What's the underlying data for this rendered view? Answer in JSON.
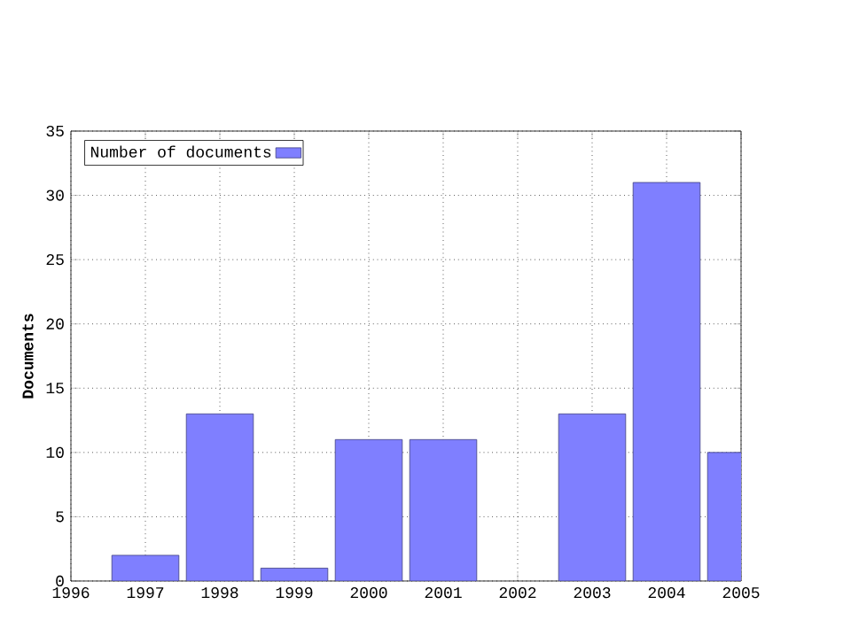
{
  "chart_data": {
    "type": "bar",
    "ylabel": "Documents",
    "x": [
      1997,
      1998,
      1999,
      2000,
      2001,
      2003,
      2004,
      2005
    ],
    "series": [
      {
        "name": "Number of documents",
        "color": "#7f7fff",
        "values": [
          2,
          13,
          1,
          11,
          11,
          13,
          31,
          10
        ]
      }
    ],
    "xlim": [
      1996,
      2005
    ],
    "xticks": [
      1996,
      1997,
      1998,
      1999,
      2000,
      2001,
      2002,
      2003,
      2004,
      2005
    ],
    "ylim": [
      0,
      35
    ],
    "yticks": [
      0,
      5,
      10,
      15,
      20,
      25,
      30,
      35
    ],
    "grid": true,
    "legend": "top left"
  }
}
